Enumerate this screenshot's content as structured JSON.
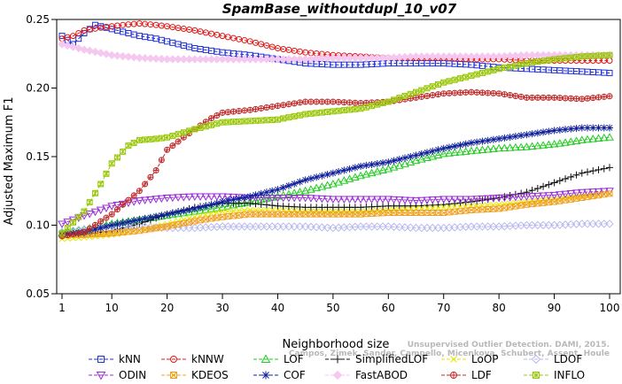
{
  "chart_data": {
    "type": "line",
    "title": "SpamBase_withoutdupl_10_v07",
    "xlabel": "Neighborhood size",
    "ylabel": "Adjusted Maximum F1",
    "xlim": [
      1,
      100
    ],
    "ylim": [
      0.05,
      0.25
    ],
    "xticks": [
      1,
      10,
      20,
      30,
      40,
      50,
      60,
      70,
      80,
      90,
      100
    ],
    "yticks": [
      0.05,
      0.1,
      0.15,
      0.2,
      0.25
    ],
    "ytick_labels": [
      "0.05",
      "0.10",
      "0.15",
      "0.20",
      "0.25"
    ],
    "grid": false,
    "legend_position": "bottom",
    "watermark": [
      "Campos, Zimek, Sander, Campello, Micenkova, Schubert, Assent, Houle",
      "Unsupervised Outlier Detection. DAMI, 2015."
    ],
    "series": [
      {
        "name": "kNN",
        "color": "#1f2fd8",
        "marker": "square",
        "points": [
          [
            1,
            0.238
          ],
          [
            3,
            0.232
          ],
          [
            5,
            0.24
          ],
          [
            7,
            0.246
          ],
          [
            9,
            0.244
          ],
          [
            12,
            0.241
          ],
          [
            15,
            0.238
          ],
          [
            18,
            0.236
          ],
          [
            20,
            0.234
          ],
          [
            25,
            0.229
          ],
          [
            30,
            0.226
          ],
          [
            35,
            0.224
          ],
          [
            40,
            0.221
          ],
          [
            45,
            0.218
          ],
          [
            50,
            0.217
          ],
          [
            55,
            0.217
          ],
          [
            60,
            0.218
          ],
          [
            65,
            0.218
          ],
          [
            70,
            0.218
          ],
          [
            75,
            0.217
          ],
          [
            80,
            0.215
          ],
          [
            85,
            0.214
          ],
          [
            90,
            0.213
          ],
          [
            95,
            0.212
          ],
          [
            100,
            0.211
          ]
        ]
      },
      {
        "name": "kNNW",
        "color": "#e01818",
        "marker": "circle",
        "points": [
          [
            1,
            0.236
          ],
          [
            3,
            0.238
          ],
          [
            5,
            0.242
          ],
          [
            8,
            0.244
          ],
          [
            12,
            0.246
          ],
          [
            15,
            0.247
          ],
          [
            18,
            0.246
          ],
          [
            20,
            0.245
          ],
          [
            25,
            0.242
          ],
          [
            30,
            0.238
          ],
          [
            35,
            0.234
          ],
          [
            40,
            0.229
          ],
          [
            45,
            0.226
          ],
          [
            50,
            0.224
          ],
          [
            55,
            0.223
          ],
          [
            60,
            0.222
          ],
          [
            65,
            0.222
          ],
          [
            70,
            0.222
          ],
          [
            75,
            0.221
          ],
          [
            80,
            0.221
          ],
          [
            85,
            0.22
          ],
          [
            90,
            0.22
          ],
          [
            95,
            0.22
          ],
          [
            100,
            0.22
          ]
        ]
      },
      {
        "name": "LOF",
        "color": "#22cc22",
        "marker": "triangle",
        "points": [
          [
            1,
            0.094
          ],
          [
            5,
            0.097
          ],
          [
            10,
            0.101
          ],
          [
            15,
            0.104
          ],
          [
            20,
            0.107
          ],
          [
            25,
            0.11
          ],
          [
            30,
            0.113
          ],
          [
            35,
            0.117
          ],
          [
            40,
            0.121
          ],
          [
            45,
            0.125
          ],
          [
            50,
            0.13
          ],
          [
            55,
            0.136
          ],
          [
            60,
            0.141
          ],
          [
            65,
            0.147
          ],
          [
            70,
            0.152
          ],
          [
            75,
            0.154
          ],
          [
            80,
            0.156
          ],
          [
            85,
            0.157
          ],
          [
            90,
            0.159
          ],
          [
            95,
            0.162
          ],
          [
            100,
            0.164
          ]
        ]
      },
      {
        "name": "SimplifiedLOF",
        "color": "#111111",
        "marker": "plus",
        "points": [
          [
            1,
            0.092
          ],
          [
            5,
            0.093
          ],
          [
            10,
            0.096
          ],
          [
            15,
            0.101
          ],
          [
            20,
            0.108
          ],
          [
            25,
            0.113
          ],
          [
            30,
            0.116
          ],
          [
            35,
            0.116
          ],
          [
            40,
            0.114
          ],
          [
            45,
            0.113
          ],
          [
            50,
            0.113
          ],
          [
            55,
            0.113
          ],
          [
            60,
            0.114
          ],
          [
            65,
            0.114
          ],
          [
            70,
            0.115
          ],
          [
            75,
            0.117
          ],
          [
            80,
            0.12
          ],
          [
            85,
            0.124
          ],
          [
            90,
            0.131
          ],
          [
            95,
            0.138
          ],
          [
            100,
            0.142
          ]
        ]
      },
      {
        "name": "LoOP",
        "color": "#e6e600",
        "marker": "x",
        "points": [
          [
            1,
            0.09
          ],
          [
            5,
            0.091
          ],
          [
            10,
            0.093
          ],
          [
            15,
            0.096
          ],
          [
            20,
            0.101
          ],
          [
            25,
            0.106
          ],
          [
            30,
            0.11
          ],
          [
            35,
            0.111
          ],
          [
            40,
            0.111
          ],
          [
            45,
            0.11
          ],
          [
            50,
            0.11
          ],
          [
            55,
            0.11
          ],
          [
            60,
            0.111
          ],
          [
            65,
            0.112
          ],
          [
            70,
            0.113
          ],
          [
            75,
            0.114
          ],
          [
            80,
            0.115
          ],
          [
            85,
            0.117
          ],
          [
            90,
            0.119
          ],
          [
            95,
            0.121
          ],
          [
            100,
            0.123
          ]
        ]
      },
      {
        "name": "LDOF",
        "color": "#b9b9ee",
        "marker": "diamond",
        "points": [
          [
            1,
            0.095
          ],
          [
            5,
            0.097
          ],
          [
            10,
            0.099
          ],
          [
            15,
            0.099
          ],
          [
            20,
            0.098
          ],
          [
            25,
            0.098
          ],
          [
            30,
            0.099
          ],
          [
            35,
            0.099
          ],
          [
            40,
            0.099
          ],
          [
            45,
            0.099
          ],
          [
            50,
            0.098
          ],
          [
            55,
            0.099
          ],
          [
            60,
            0.099
          ],
          [
            65,
            0.098
          ],
          [
            70,
            0.098
          ],
          [
            75,
            0.099
          ],
          [
            80,
            0.099
          ],
          [
            85,
            0.1
          ],
          [
            90,
            0.1
          ],
          [
            95,
            0.101
          ],
          [
            100,
            0.101
          ]
        ]
      },
      {
        "name": "ODIN",
        "color": "#9a2fd6",
        "marker": "triangle-down",
        "points": [
          [
            1,
            0.101
          ],
          [
            5,
            0.107
          ],
          [
            10,
            0.114
          ],
          [
            15,
            0.118
          ],
          [
            20,
            0.12
          ],
          [
            25,
            0.121
          ],
          [
            30,
            0.121
          ],
          [
            35,
            0.12
          ],
          [
            40,
            0.12
          ],
          [
            45,
            0.12
          ],
          [
            50,
            0.119
          ],
          [
            55,
            0.119
          ],
          [
            60,
            0.119
          ],
          [
            65,
            0.118
          ],
          [
            70,
            0.119
          ],
          [
            75,
            0.119
          ],
          [
            80,
            0.12
          ],
          [
            85,
            0.121
          ],
          [
            90,
            0.122
          ],
          [
            95,
            0.124
          ],
          [
            100,
            0.125
          ]
        ]
      },
      {
        "name": "KDEOS",
        "color": "#f0a020",
        "marker": "square-x",
        "points": [
          [
            1,
            0.093
          ],
          [
            5,
            0.093
          ],
          [
            10,
            0.094
          ],
          [
            15,
            0.096
          ],
          [
            20,
            0.099
          ],
          [
            25,
            0.103
          ],
          [
            30,
            0.106
          ],
          [
            35,
            0.108
          ],
          [
            40,
            0.108
          ],
          [
            45,
            0.108
          ],
          [
            50,
            0.108
          ],
          [
            55,
            0.108
          ],
          [
            60,
            0.109
          ],
          [
            65,
            0.109
          ],
          [
            70,
            0.109
          ],
          [
            75,
            0.111
          ],
          [
            80,
            0.112
          ],
          [
            85,
            0.115
          ],
          [
            90,
            0.117
          ],
          [
            95,
            0.12
          ],
          [
            100,
            0.123
          ]
        ]
      },
      {
        "name": "COF",
        "color": "#10209a",
        "marker": "star",
        "points": [
          [
            1,
            0.093
          ],
          [
            5,
            0.095
          ],
          [
            10,
            0.1
          ],
          [
            15,
            0.104
          ],
          [
            20,
            0.108
          ],
          [
            25,
            0.112
          ],
          [
            30,
            0.117
          ],
          [
            35,
            0.121
          ],
          [
            40,
            0.126
          ],
          [
            45,
            0.133
          ],
          [
            50,
            0.138
          ],
          [
            55,
            0.143
          ],
          [
            60,
            0.146
          ],
          [
            65,
            0.151
          ],
          [
            70,
            0.156
          ],
          [
            75,
            0.16
          ],
          [
            80,
            0.163
          ],
          [
            85,
            0.166
          ],
          [
            90,
            0.169
          ],
          [
            95,
            0.171
          ],
          [
            100,
            0.171
          ]
        ]
      },
      {
        "name": "FastABOD",
        "color": "#f5c8f0",
        "marker": "diamond-filled",
        "points": [
          [
            1,
            0.232
          ],
          [
            5,
            0.228
          ],
          [
            10,
            0.224
          ],
          [
            15,
            0.222
          ],
          [
            20,
            0.221
          ],
          [
            25,
            0.221
          ],
          [
            30,
            0.221
          ],
          [
            35,
            0.221
          ],
          [
            40,
            0.221
          ],
          [
            45,
            0.221
          ],
          [
            50,
            0.222
          ],
          [
            55,
            0.222
          ],
          [
            60,
            0.222
          ],
          [
            65,
            0.223
          ],
          [
            70,
            0.223
          ],
          [
            75,
            0.223
          ],
          [
            80,
            0.223
          ],
          [
            85,
            0.224
          ],
          [
            90,
            0.224
          ],
          [
            95,
            0.224
          ],
          [
            100,
            0.224
          ]
        ]
      },
      {
        "name": "LDF",
        "color": "#c02828",
        "marker": "circle-plus",
        "points": [
          [
            1,
            0.092
          ],
          [
            5,
            0.095
          ],
          [
            10,
            0.108
          ],
          [
            12,
            0.115
          ],
          [
            15,
            0.125
          ],
          [
            18,
            0.14
          ],
          [
            20,
            0.155
          ],
          [
            25,
            0.17
          ],
          [
            28,
            0.178
          ],
          [
            30,
            0.182
          ],
          [
            35,
            0.184
          ],
          [
            40,
            0.187
          ],
          [
            45,
            0.19
          ],
          [
            50,
            0.19
          ],
          [
            55,
            0.189
          ],
          [
            60,
            0.19
          ],
          [
            65,
            0.193
          ],
          [
            70,
            0.196
          ],
          [
            75,
            0.197
          ],
          [
            80,
            0.196
          ],
          [
            85,
            0.193
          ],
          [
            90,
            0.193
          ],
          [
            95,
            0.192
          ],
          [
            100,
            0.194
          ]
        ]
      },
      {
        "name": "INFLO",
        "color": "#9ac80a",
        "marker": "star-square",
        "points": [
          [
            1,
            0.094
          ],
          [
            5,
            0.11
          ],
          [
            8,
            0.13
          ],
          [
            10,
            0.145
          ],
          [
            13,
            0.158
          ],
          [
            15,
            0.162
          ],
          [
            18,
            0.163
          ],
          [
            20,
            0.164
          ],
          [
            25,
            0.17
          ],
          [
            30,
            0.175
          ],
          [
            35,
            0.176
          ],
          [
            40,
            0.177
          ],
          [
            45,
            0.181
          ],
          [
            50,
            0.183
          ],
          [
            55,
            0.185
          ],
          [
            60,
            0.19
          ],
          [
            65,
            0.197
          ],
          [
            70,
            0.204
          ],
          [
            75,
            0.209
          ],
          [
            80,
            0.214
          ],
          [
            85,
            0.218
          ],
          [
            90,
            0.221
          ],
          [
            95,
            0.223
          ],
          [
            100,
            0.224
          ]
        ]
      }
    ]
  }
}
